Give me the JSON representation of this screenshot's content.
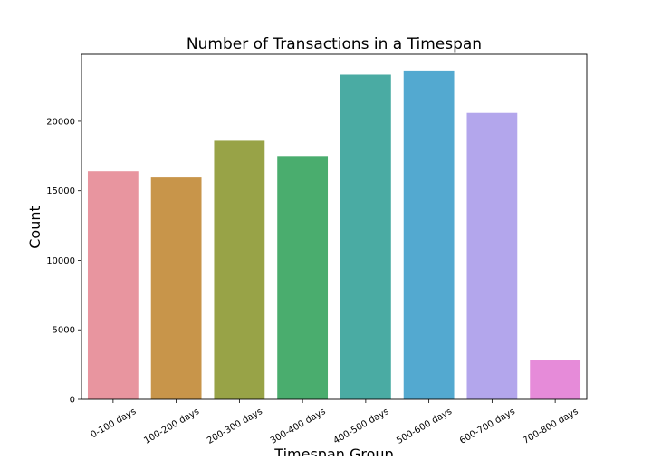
{
  "chart_data": {
    "type": "bar",
    "title": "Number of Transactions in a Timespan",
    "xlabel": "Timespan Group",
    "ylabel": "Count",
    "categories": [
      "0-100 days",
      "100-200 days",
      "200-300 days",
      "300-400 days",
      "400-500 days",
      "500-600 days",
      "600-700 days",
      "700-800 days"
    ],
    "values": [
      16400,
      15950,
      18600,
      17500,
      23350,
      23650,
      20600,
      2800
    ],
    "colors": [
      "#e8959f",
      "#c8954a",
      "#98a347",
      "#4aad6e",
      "#4aaba3",
      "#53a9d0",
      "#b3a6ec",
      "#e68bd9"
    ],
    "yticks": [
      0,
      5000,
      10000,
      15000,
      20000
    ],
    "ylim": [
      0,
      24815
    ],
    "grid": false,
    "legend": "none"
  }
}
